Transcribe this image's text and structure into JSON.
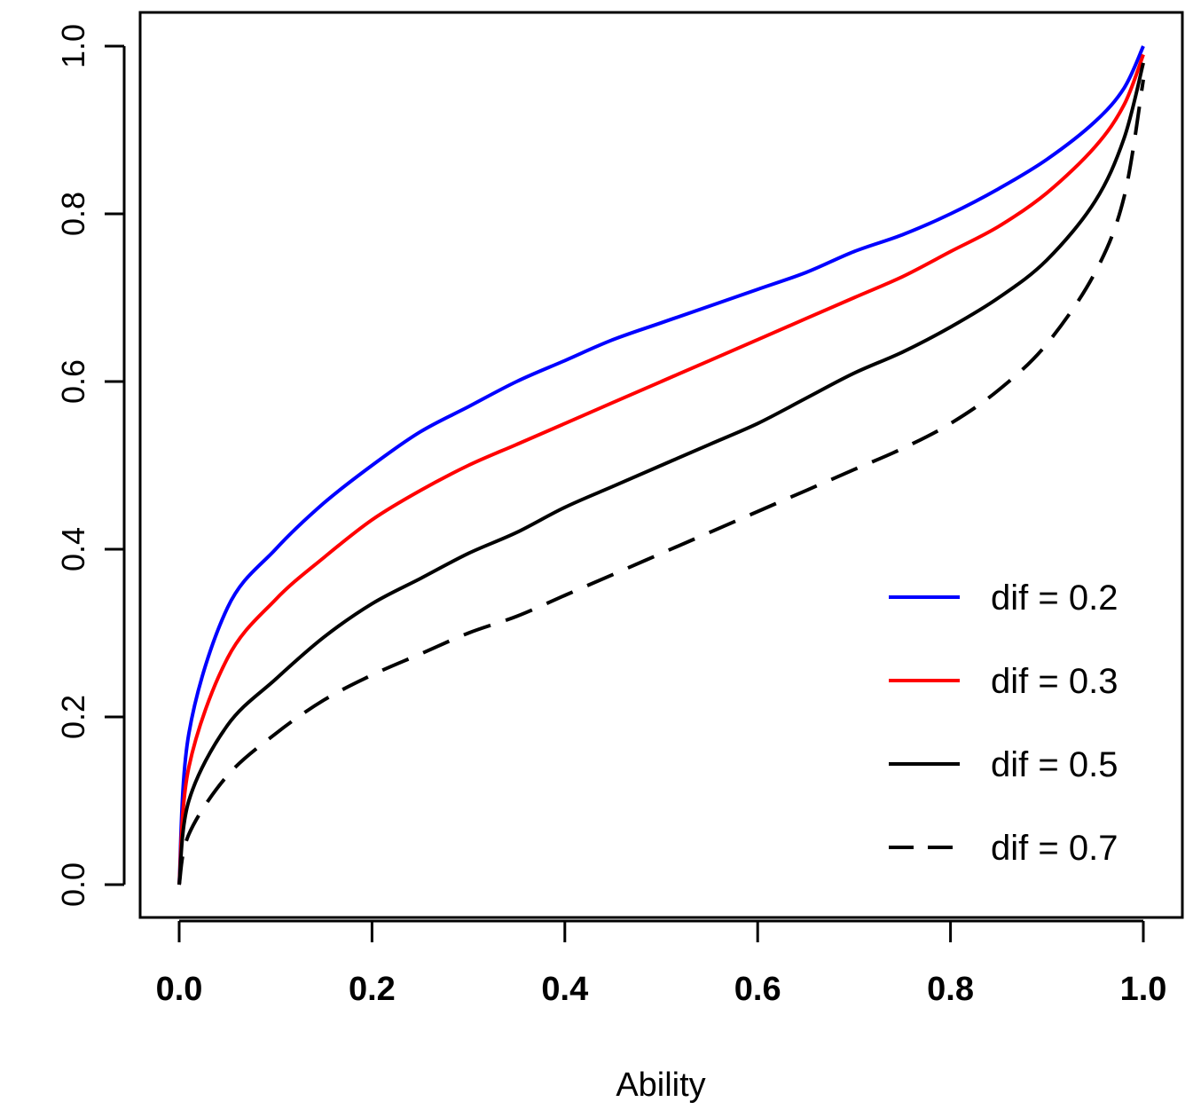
{
  "chart_data": {
    "type": "line",
    "title": "",
    "xlabel": "Ability",
    "ylabel": "",
    "xlim": [
      0,
      1
    ],
    "ylim": [
      0,
      1
    ],
    "grid": false,
    "legend_position": "bottom-right",
    "x_ticks": [
      "0.0",
      "0.2",
      "0.4",
      "0.6",
      "0.8",
      "1.0"
    ],
    "y_ticks": [
      "0.0",
      "0.2",
      "0.4",
      "0.6",
      "0.8",
      "1.0"
    ],
    "x": [
      0,
      0.01,
      0.05,
      0.1,
      0.15,
      0.2,
      0.25,
      0.3,
      0.35,
      0.4,
      0.45,
      0.5,
      0.55,
      0.6,
      0.65,
      0.7,
      0.75,
      0.8,
      0.85,
      0.9,
      0.95,
      0.98,
      1.0
    ],
    "series": [
      {
        "name": "dif = 0.2",
        "color": "#0000ff",
        "dash": "solid",
        "values": [
          0.0,
          0.18,
          0.33,
          0.4,
          0.455,
          0.5,
          0.54,
          0.57,
          0.6,
          0.625,
          0.65,
          0.67,
          0.69,
          0.71,
          0.73,
          0.755,
          0.775,
          0.8,
          0.83,
          0.865,
          0.91,
          0.95,
          1.0
        ]
      },
      {
        "name": "dif = 0.3",
        "color": "#ff0000",
        "dash": "solid",
        "values": [
          0.0,
          0.14,
          0.27,
          0.34,
          0.39,
          0.435,
          0.47,
          0.5,
          0.525,
          0.55,
          0.575,
          0.6,
          0.625,
          0.65,
          0.675,
          0.7,
          0.725,
          0.755,
          0.785,
          0.825,
          0.88,
          0.93,
          0.99
        ]
      },
      {
        "name": "dif = 0.5",
        "color": "#000000",
        "dash": "solid",
        "values": [
          0.0,
          0.1,
          0.19,
          0.245,
          0.295,
          0.335,
          0.365,
          0.395,
          0.42,
          0.45,
          0.475,
          0.5,
          0.525,
          0.55,
          0.58,
          0.61,
          0.635,
          0.665,
          0.7,
          0.745,
          0.815,
          0.89,
          0.98
        ]
      },
      {
        "name": "dif = 0.7",
        "color": "#000000",
        "dash": "dashed",
        "values": [
          0.0,
          0.06,
          0.13,
          0.18,
          0.22,
          0.25,
          0.275,
          0.3,
          0.32,
          0.345,
          0.37,
          0.395,
          0.42,
          0.445,
          0.47,
          0.495,
          0.52,
          0.55,
          0.59,
          0.645,
          0.73,
          0.82,
          0.96
        ]
      }
    ]
  }
}
